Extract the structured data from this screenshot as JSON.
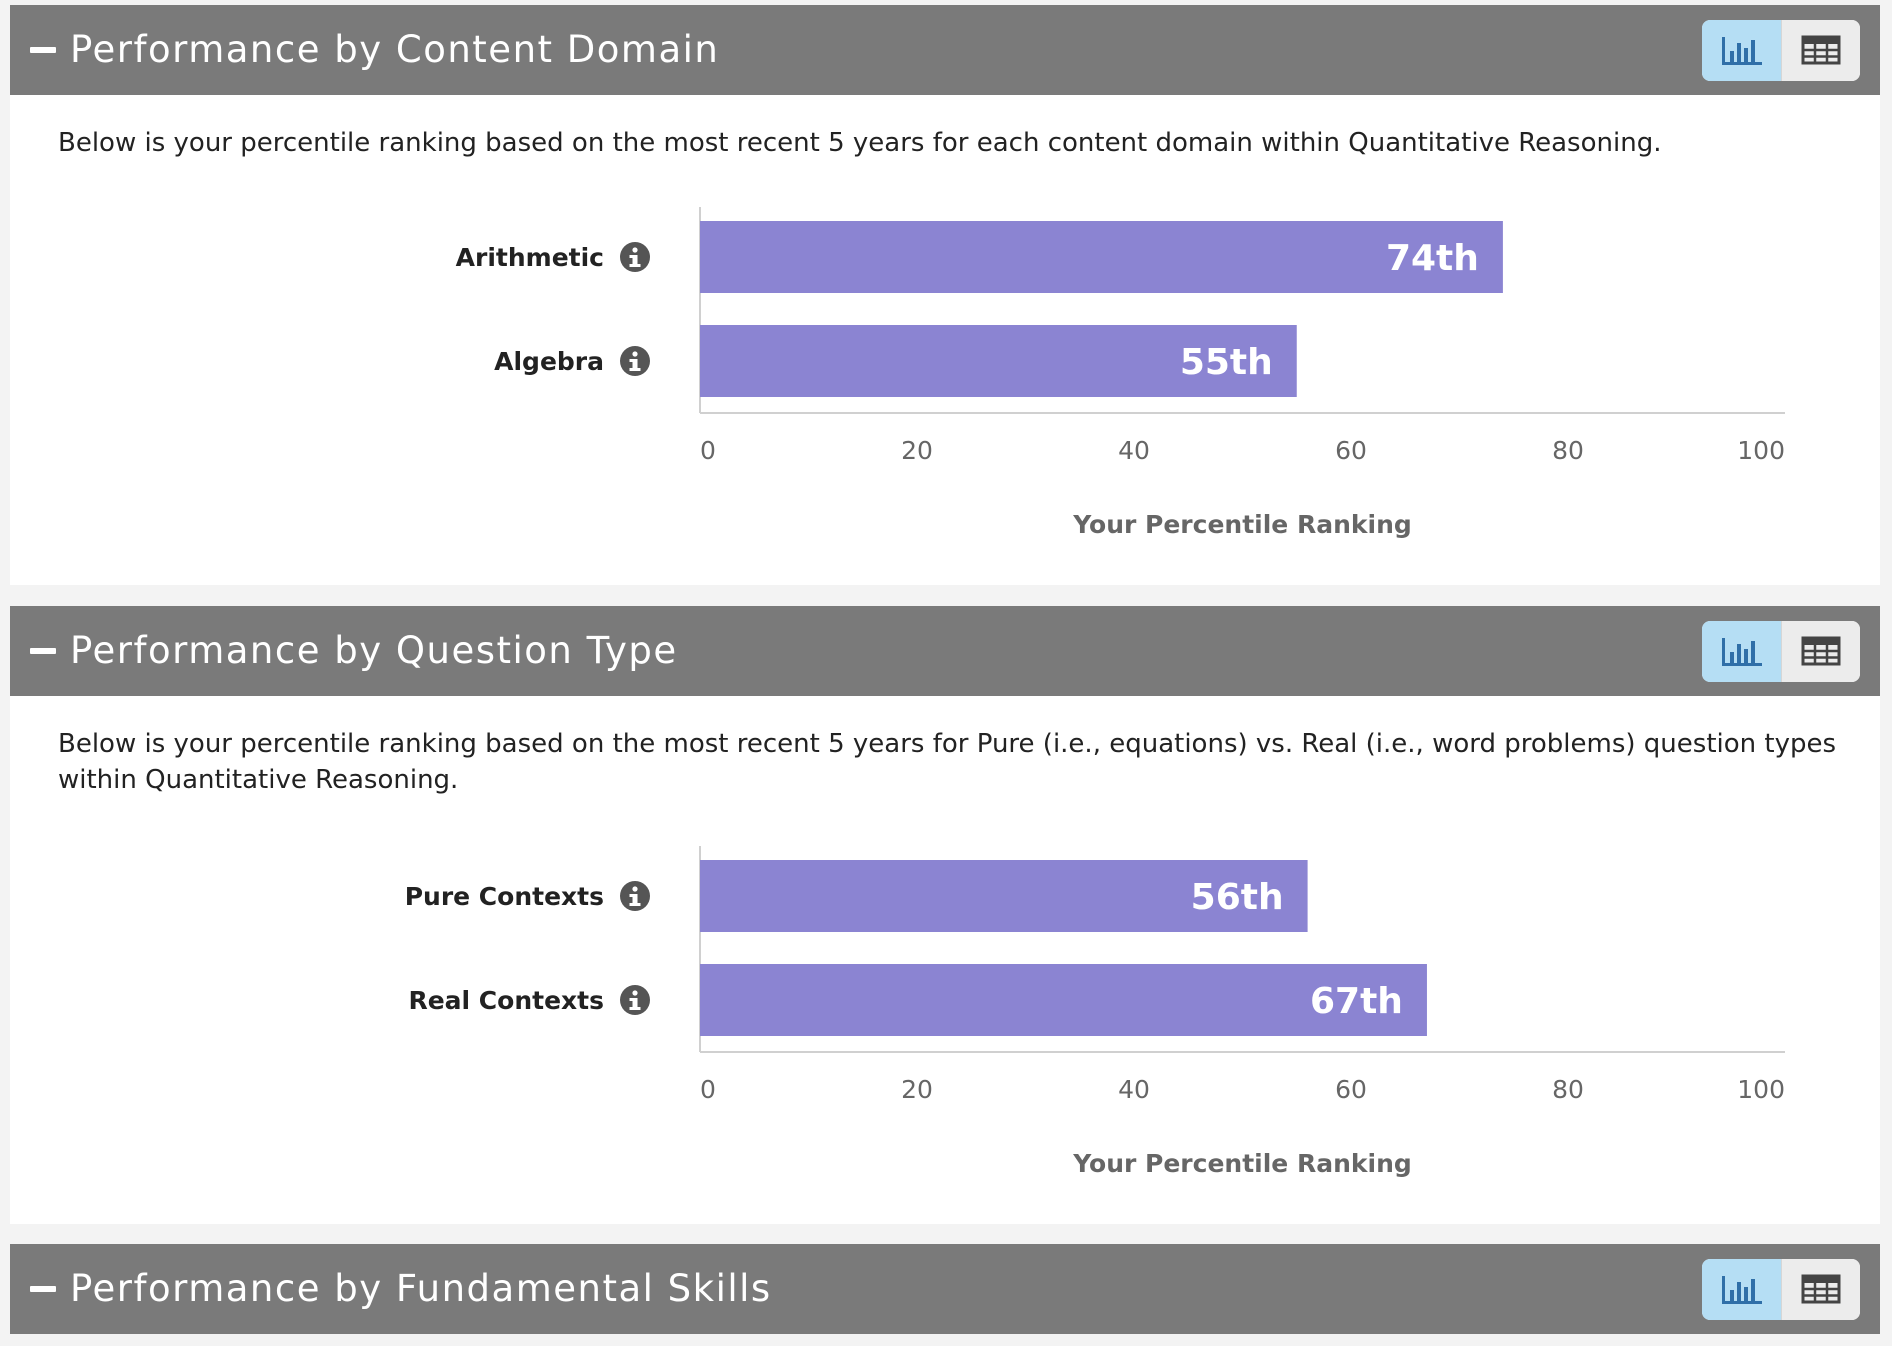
{
  "panels": [
    {
      "title": "Performance by Content Domain",
      "description": "Below is your percentile ranking based on the most recent 5 years for each content domain within Quantitative Reasoning."
    },
    {
      "title": "Performance by Question Type",
      "description": "Below is your percentile ranking based on the most recent 5 years for Pure (i.e., equations) vs. Real (i.e., word problems) question types within Quantitative Reasoning."
    },
    {
      "title": "Performance by Fundamental Skills"
    }
  ],
  "icons": {
    "collapse": "minus-icon",
    "chart_view": "bar-chart-icon",
    "table_view": "table-icon",
    "info": "info-icon"
  },
  "colors": {
    "header_bg": "#7a7a7a",
    "bar": "#8b84d2",
    "toggle_active": "#b5def4"
  },
  "chart_data": [
    {
      "type": "bar",
      "orientation": "horizontal",
      "categories": [
        "Arithmetic",
        "Algebra"
      ],
      "values": [
        74,
        55
      ],
      "data_labels": [
        "74th",
        "55th"
      ],
      "xlabel": "Your Percentile Ranking",
      "xlim": [
        0,
        100
      ],
      "xticks": [
        0,
        20,
        40,
        60,
        80,
        100
      ],
      "grid": false
    },
    {
      "type": "bar",
      "orientation": "horizontal",
      "categories": [
        "Pure Contexts",
        "Real Contexts"
      ],
      "values": [
        56,
        67
      ],
      "data_labels": [
        "56th",
        "67th"
      ],
      "xlabel": "Your Percentile Ranking",
      "xlim": [
        0,
        100
      ],
      "xticks": [
        0,
        20,
        40,
        60,
        80,
        100
      ],
      "grid": false
    }
  ]
}
